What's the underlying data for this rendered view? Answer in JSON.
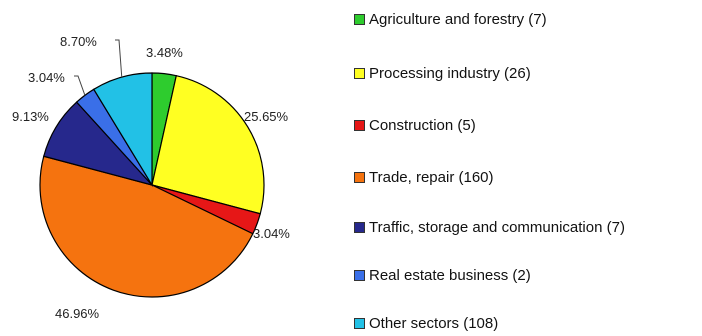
{
  "chart_data": {
    "type": "pie",
    "slices": [
      {
        "label": "Agriculture and forestry (7)",
        "percent": 3.48,
        "display": "3.48%",
        "color": "#2ecc2e"
      },
      {
        "label": "Processing industry (26)",
        "percent": 25.65,
        "display": "25.65%",
        "color": "#ffff22"
      },
      {
        "label": "Construction (5)",
        "percent": 3.04,
        "display": "3.04%",
        "color": "#e61717"
      },
      {
        "label": "Trade, repair (160)",
        "percent": 46.96,
        "display": "46.96%",
        "color": "#f5730f"
      },
      {
        "label": "Traffic, storage and communication (7)",
        "percent": 9.13,
        "display": "9.13%",
        "color": "#26288c"
      },
      {
        "label": "Real estate business (2)",
        "percent": 3.04,
        "display": "3.04%",
        "color": "#3a6fe8"
      },
      {
        "label": "Other sectors (108)",
        "percent": 8.7,
        "display": "8.70%",
        "color": "#22c1e6"
      }
    ],
    "start_angle_deg": 0,
    "direction": "clockwise",
    "legend_position": "right"
  }
}
